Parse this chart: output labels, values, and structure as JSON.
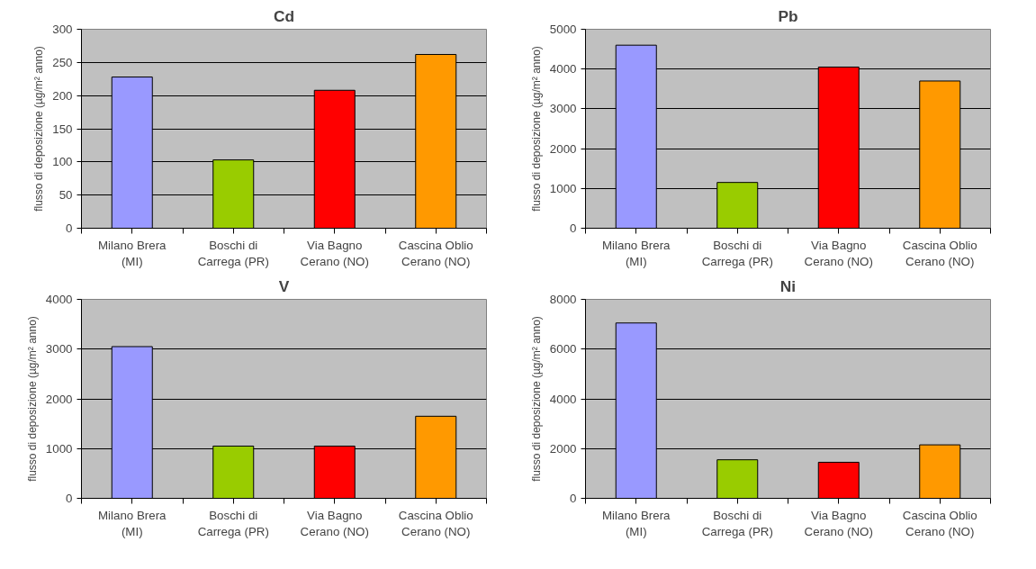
{
  "chart_data": [
    {
      "type": "bar",
      "title": "Cd",
      "ylabel": "flusso di deposizione (µg/m² anno)",
      "categories": [
        "Milano Brera (MI)",
        "Boschi di Carrega (PR)",
        "Via Bagno Cerano (NO)",
        "Cascina Oblio Cerano (NO)"
      ],
      "values": [
        228,
        103,
        208,
        262
      ],
      "colors": [
        "#9999ff",
        "#99cc00",
        "#ff0000",
        "#ff9900"
      ],
      "ylim": [
        0,
        300
      ],
      "yticks": [
        0,
        50,
        100,
        150,
        200,
        250,
        300
      ],
      "grid": "y",
      "legend": false
    },
    {
      "type": "bar",
      "title": "Pb",
      "ylabel": "flusso di deposizione (µg/m² anno)",
      "categories": [
        "Milano Brera (MI)",
        "Boschi di Carrega (PR)",
        "Via Bagno Cerano (NO)",
        "Cascina Oblio Cerano (NO)"
      ],
      "values": [
        4600,
        1150,
        4050,
        3700
      ],
      "colors": [
        "#9999ff",
        "#99cc00",
        "#ff0000",
        "#ff9900"
      ],
      "ylim": [
        0,
        5000
      ],
      "yticks": [
        0,
        1000,
        2000,
        3000,
        4000,
        5000
      ],
      "grid": "y",
      "legend": false
    },
    {
      "type": "bar",
      "title": "V",
      "ylabel": "flusso di deposizione (µg/m² anno)",
      "categories": [
        "Milano Brera (MI)",
        "Boschi di Carrega (PR)",
        "Via Bagno Cerano (NO)",
        "Cascina Oblio Cerano (NO)"
      ],
      "values": [
        3050,
        1050,
        1050,
        1650
      ],
      "colors": [
        "#9999ff",
        "#99cc00",
        "#ff0000",
        "#ff9900"
      ],
      "ylim": [
        0,
        4000
      ],
      "yticks": [
        0,
        1000,
        2000,
        3000,
        4000
      ],
      "grid": "y",
      "legend": false
    },
    {
      "type": "bar",
      "title": "Ni",
      "ylabel": "flusso di deposizione (µg/m² anno)",
      "categories": [
        "Milano Brera (MI)",
        "Boschi di Carrega (PR)",
        "Via Bagno Cerano (NO)",
        "Cascina Oblio Cerano (NO)"
      ],
      "values": [
        7050,
        1550,
        1450,
        2150
      ],
      "colors": [
        "#9999ff",
        "#99cc00",
        "#ff0000",
        "#ff9900"
      ],
      "ylim": [
        0,
        8000
      ],
      "yticks": [
        0,
        2000,
        4000,
        6000,
        8000
      ],
      "grid": "y",
      "legend": false
    }
  ]
}
